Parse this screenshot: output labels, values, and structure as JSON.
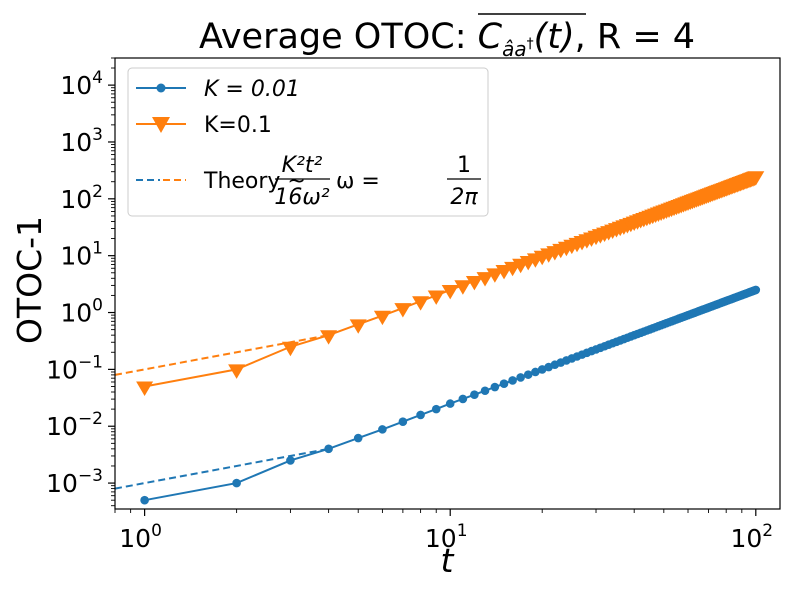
{
  "chart_data": {
    "type": "line",
    "title": "Average OTOC: C̅(t), R = 4",
    "xlabel": "t",
    "ylabel": "OTOC-1",
    "xscale": "log",
    "yscale": "log",
    "xlim": [
      0.8,
      120
    ],
    "ylim": [
      0.00035,
      30000
    ],
    "xticks": [
      1,
      10,
      100
    ],
    "yticks": [
      0.001,
      0.01,
      0.1,
      1,
      10,
      100,
      1000,
      10000
    ],
    "grid": false,
    "legend_position": "top-left",
    "series": [
      {
        "name": "K = 0.01",
        "color": "#1f77b4",
        "marker": "circle",
        "linestyle": "solid",
        "x": [
          1,
          2,
          3,
          4,
          5,
          6,
          7,
          8,
          9,
          10,
          11,
          12,
          13,
          14,
          15,
          16,
          17,
          18,
          19,
          20,
          21,
          22,
          23,
          24,
          25,
          26,
          27,
          28,
          29,
          30,
          31,
          32,
          33,
          34,
          35,
          36,
          37,
          38,
          39,
          40,
          41,
          42,
          43,
          44,
          45,
          46,
          47,
          48,
          49,
          50,
          51,
          52,
          53,
          54,
          55,
          56,
          57,
          58,
          59,
          60,
          61,
          62,
          63,
          64,
          65,
          66,
          67,
          68,
          69,
          70,
          71,
          72,
          73,
          74,
          75,
          76,
          77,
          78,
          79,
          80,
          81,
          82,
          83,
          84,
          85,
          86,
          87,
          88,
          89,
          90,
          91,
          92,
          93,
          94,
          95,
          96,
          97,
          98,
          99,
          100
        ],
        "y": [
          0.0005,
          0.001,
          0.0025,
          0.004,
          0.0062,
          0.0088,
          0.012,
          0.0158,
          0.02,
          0.025,
          0.0302,
          0.0359,
          0.0421,
          0.0489,
          0.0561,
          0.0638,
          0.0721,
          0.0808,
          0.09,
          0.0997,
          0.11,
          0.1207,
          0.1319,
          0.1436,
          0.1558,
          0.1685,
          0.1817,
          0.1954,
          0.2096,
          0.2243,
          0.2395,
          0.2552,
          0.2715,
          0.2882,
          0.3054,
          0.3231,
          0.3413,
          0.36,
          0.3792,
          0.3989,
          0.4191,
          0.4398,
          0.461,
          0.4827,
          0.5049,
          0.5276,
          0.5508,
          0.5745,
          0.5987,
          0.6233,
          0.6485,
          0.6742,
          0.7004,
          0.7271,
          0.7543,
          0.782,
          0.8102,
          0.8389,
          0.8681,
          0.8978,
          0.928,
          0.9587,
          0.9899,
          1.0216,
          1.0538,
          1.0865,
          1.1197,
          1.1534,
          1.1876,
          1.2223,
          1.2575,
          1.2932,
          1.3294,
          1.3661,
          1.4034,
          1.4411,
          1.4793,
          1.518,
          1.5572,
          1.5969,
          1.6371,
          1.6778,
          1.7191,
          1.7608,
          1.803,
          1.8457,
          1.8889,
          1.9326,
          1.9769,
          2.0216,
          2.0668,
          2.1125,
          2.1587,
          2.2054,
          2.2526,
          2.3004,
          2.3486,
          2.3973,
          2.4465,
          2.5
        ]
      },
      {
        "name": "K=0.1",
        "color": "#ff7f0e",
        "marker": "triangle-down",
        "linestyle": "solid",
        "x": [
          1,
          2,
          3,
          4,
          5,
          6,
          7,
          8,
          9,
          10,
          11,
          12,
          13,
          14,
          15,
          16,
          17,
          18,
          19,
          20,
          21,
          22,
          23,
          24,
          25,
          26,
          27,
          28,
          29,
          30,
          31,
          32,
          33,
          34,
          35,
          36,
          37,
          38,
          39,
          40,
          41,
          42,
          43,
          44,
          45,
          46,
          47,
          48,
          49,
          50,
          51,
          52,
          53,
          54,
          55,
          56,
          57,
          58,
          59,
          60,
          61,
          62,
          63,
          64,
          65,
          66,
          67,
          68,
          69,
          70,
          71,
          72,
          73,
          74,
          75,
          76,
          77,
          78,
          79,
          80,
          81,
          82,
          83,
          84,
          85,
          86,
          87,
          88,
          89,
          90,
          91,
          92,
          93,
          94,
          95,
          96,
          97,
          98,
          99,
          100
        ],
        "y": [
          0.05,
          0.1,
          0.25,
          0.4,
          0.62,
          0.88,
          1.2,
          1.58,
          2.0,
          2.5,
          3.02,
          3.59,
          4.21,
          4.89,
          5.61,
          6.38,
          7.21,
          8.08,
          9.0,
          9.97,
          11.0,
          12.07,
          13.19,
          14.36,
          15.58,
          16.85,
          18.17,
          19.54,
          20.96,
          22.43,
          23.95,
          25.52,
          27.15,
          28.82,
          30.54,
          32.31,
          34.13,
          36.0,
          37.92,
          39.89,
          41.91,
          43.98,
          46.1,
          48.27,
          50.49,
          52.76,
          55.08,
          57.45,
          59.87,
          62.33,
          64.85,
          67.42,
          70.04,
          72.71,
          75.43,
          78.2,
          81.02,
          83.89,
          86.81,
          89.78,
          92.8,
          95.87,
          98.99,
          102.16,
          105.38,
          108.65,
          111.97,
          115.34,
          118.76,
          122.23,
          125.75,
          129.32,
          132.94,
          136.61,
          140.34,
          144.11,
          147.93,
          151.8,
          155.72,
          159.69,
          163.71,
          167.78,
          171.91,
          176.08,
          180.3,
          184.57,
          188.89,
          193.26,
          197.69,
          202.16,
          206.68,
          211.25,
          215.87,
          220.54,
          225.26,
          230.04,
          234.86,
          239.73,
          244.65,
          250.0
        ]
      },
      {
        "name": "Theory ~ K²t²/(16ω²), ω = 1/(2π)",
        "color": "#1f77b4",
        "linestyle": "dashed",
        "x": [
          0.8,
          4
        ],
        "y": [
          0.0008,
          0.004
        ]
      },
      {
        "name": "Theory ~ K²t²/(16ω²), ω = 1/(2π)",
        "color": "#ff7f0e",
        "linestyle": "dashed",
        "x": [
          0.8,
          4
        ],
        "y": [
          0.08,
          0.4
        ]
      }
    ]
  },
  "legend": {
    "entry_1": "K = 0.01",
    "entry_2": "K=0.1",
    "entry_3_prefix": "Theory ~",
    "entry_3_formula_num": "K²t²",
    "entry_3_formula_den": "16ω²",
    "entry_3_omega": "ω =",
    "entry_3_omega_num": "1",
    "entry_3_omega_den": "2π"
  },
  "title_parts": {
    "prefix": "Average OTOC: ",
    "c": "C",
    "sub": "âa",
    "arg": "(t)",
    "suffix": ", R = 4"
  },
  "axis": {
    "xlabel": "t",
    "ylabel": "OTOC-1",
    "x_tick_base": "10",
    "x_tick_exponents": [
      "0",
      "1",
      "2"
    ],
    "y_tick_base": "10",
    "y_tick_exponents": [
      "−3",
      "−2",
      "−1",
      "0",
      "1",
      "2",
      "3",
      "4"
    ]
  },
  "colors": {
    "blue": "#1f77b4",
    "orange": "#ff7f0e"
  }
}
